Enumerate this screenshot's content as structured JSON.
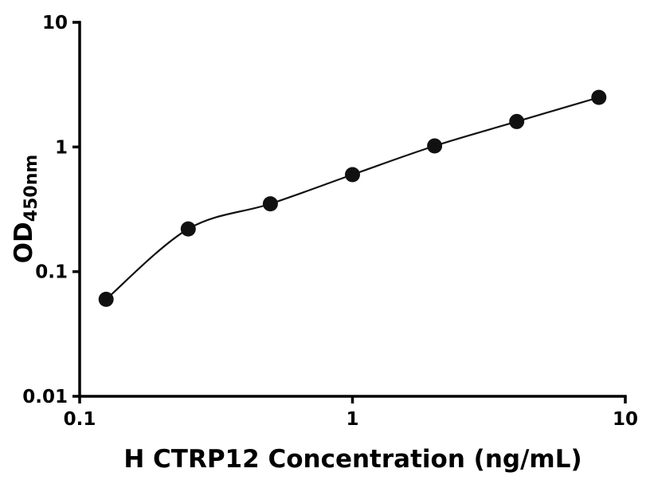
{
  "chart_data": {
    "type": "scatter",
    "title": "",
    "xlabel": "H CTRP12 Concentration (ng/mL)",
    "ylabel_main": "OD",
    "ylabel_sub": "450nm",
    "x": [
      0.125,
      0.25,
      0.5,
      1,
      2,
      4,
      8
    ],
    "y": [
      0.06,
      0.22,
      0.35,
      0.6,
      1.02,
      1.6,
      2.5
    ],
    "xscale": "log",
    "yscale": "log",
    "xlim": [
      0.1,
      10
    ],
    "ylim": [
      0.01,
      10
    ],
    "x_ticks": [
      "0.1",
      "1",
      "10"
    ],
    "y_ticks": [
      "10",
      "1",
      "0.1",
      "0.01"
    ],
    "grid": false,
    "legend": "none",
    "axis_color": "#000000",
    "marker_color": "#111111",
    "line_color": "#111111"
  }
}
